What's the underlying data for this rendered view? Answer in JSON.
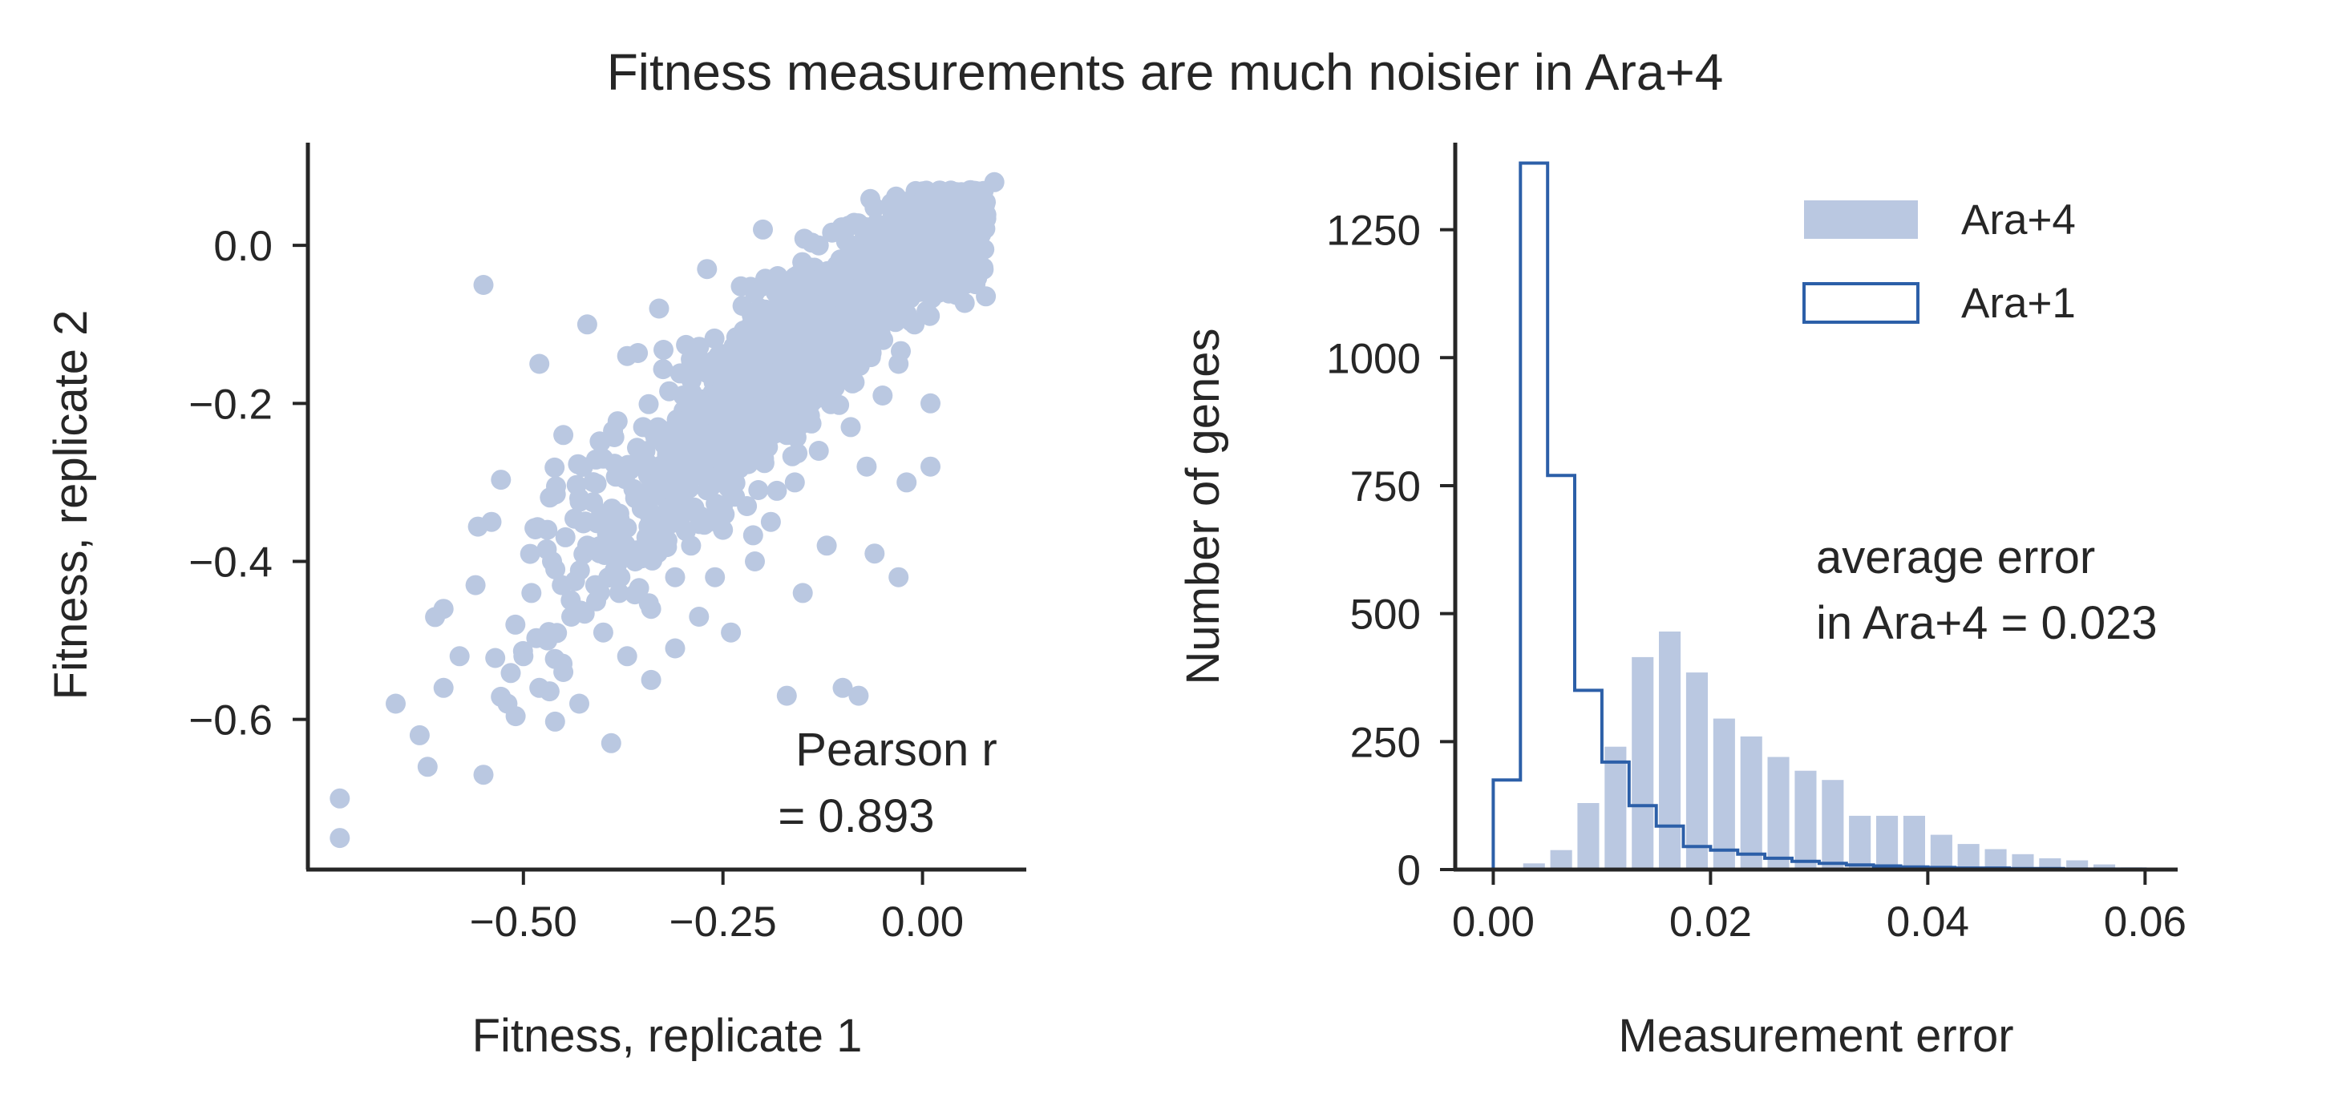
{
  "suptitle": "Fitness measurements are much noisier in Ara+4",
  "colors": {
    "ara4": "#bac8e1",
    "ara1": "#2c5fa8",
    "axis": "#262626"
  },
  "chart_data": [
    {
      "type": "scatter",
      "title": "",
      "xlabel": "Fitness, replicate 1",
      "ylabel": "Fitness, replicate 2",
      "xlim": [
        -0.77,
        0.13
      ],
      "ylim": [
        -0.79,
        0.13
      ],
      "xticks": [
        -0.5,
        -0.25,
        0.0
      ],
      "xtick_labels": [
        "−0.50",
        "−0.25",
        "0.00"
      ],
      "yticks": [
        0.0,
        -0.2,
        -0.4,
        -0.6
      ],
      "ytick_labels": [
        "0.0",
        "−0.2",
        "−0.4",
        "−0.6"
      ],
      "annotation_line1": "Pearson r",
      "annotation_line2": "= 0.893",
      "points": [
        [
          -0.73,
          -0.75
        ],
        [
          -0.73,
          -0.7
        ],
        [
          -0.66,
          -0.58
        ],
        [
          -0.63,
          -0.62
        ],
        [
          -0.62,
          -0.66
        ],
        [
          -0.6,
          -0.56
        ],
        [
          -0.6,
          -0.46
        ],
        [
          -0.58,
          -0.52
        ],
        [
          -0.56,
          -0.43
        ],
        [
          -0.55,
          -0.67
        ],
        [
          -0.55,
          -0.05
        ],
        [
          -0.54,
          -0.35
        ],
        [
          -0.52,
          -0.58
        ],
        [
          -0.51,
          -0.48
        ],
        [
          -0.5,
          -0.52
        ],
        [
          -0.49,
          -0.44
        ],
        [
          -0.48,
          -0.56
        ],
        [
          -0.48,
          -0.15
        ],
        [
          -0.47,
          -0.36
        ],
        [
          -0.47,
          -0.5
        ],
        [
          -0.46,
          -0.41
        ],
        [
          -0.45,
          -0.54
        ],
        [
          -0.45,
          -0.24
        ],
        [
          -0.44,
          -0.47
        ],
        [
          -0.43,
          -0.32
        ],
        [
          -0.43,
          -0.58
        ],
        [
          -0.42,
          -0.38
        ],
        [
          -0.42,
          -0.1
        ],
        [
          -0.41,
          -0.43
        ],
        [
          -0.4,
          -0.49
        ],
        [
          -0.4,
          -0.27
        ],
        [
          -0.39,
          -0.35
        ],
        [
          -0.39,
          -0.63
        ],
        [
          -0.38,
          -0.44
        ],
        [
          -0.37,
          -0.52
        ],
        [
          -0.37,
          -0.14
        ],
        [
          -0.36,
          -0.32
        ],
        [
          -0.36,
          -0.4
        ],
        [
          -0.35,
          -0.23
        ],
        [
          -0.34,
          -0.46
        ],
        [
          -0.34,
          -0.55
        ],
        [
          -0.33,
          -0.36
        ],
        [
          -0.33,
          -0.08
        ],
        [
          -0.32,
          -0.29
        ],
        [
          -0.31,
          -0.42
        ],
        [
          -0.31,
          -0.51
        ],
        [
          -0.3,
          -0.19
        ],
        [
          -0.3,
          -0.34
        ],
        [
          -0.29,
          -0.38
        ],
        [
          -0.28,
          -0.47
        ],
        [
          -0.28,
          -0.25
        ],
        [
          -0.27,
          -0.03
        ],
        [
          -0.27,
          -0.31
        ],
        [
          -0.26,
          -0.42
        ],
        [
          -0.25,
          -0.17
        ],
        [
          -0.25,
          -0.36
        ],
        [
          -0.24,
          -0.28
        ],
        [
          -0.24,
          -0.49
        ],
        [
          -0.23,
          -0.12
        ],
        [
          -0.22,
          -0.33
        ],
        [
          -0.22,
          -0.22
        ],
        [
          -0.21,
          -0.4
        ],
        [
          -0.21,
          -0.06
        ],
        [
          -0.2,
          -0.27
        ],
        [
          -0.2,
          0.02
        ],
        [
          -0.19,
          -0.18
        ],
        [
          -0.19,
          -0.35
        ],
        [
          -0.18,
          -0.1
        ],
        [
          -0.17,
          -0.24
        ],
        [
          -0.17,
          -0.57
        ],
        [
          -0.16,
          -0.04
        ],
        [
          -0.16,
          -0.3
        ],
        [
          -0.15,
          -0.15
        ],
        [
          -0.15,
          -0.44
        ],
        [
          -0.14,
          -0.08
        ],
        [
          -0.14,
          -0.2
        ],
        [
          -0.13,
          0.0
        ],
        [
          -0.13,
          -0.26
        ],
        [
          -0.12,
          -0.12
        ],
        [
          -0.12,
          -0.38
        ],
        [
          -0.11,
          -0.05
        ],
        [
          -0.11,
          -0.18
        ],
        [
          -0.1,
          0.02
        ],
        [
          -0.1,
          -0.56
        ],
        [
          -0.09,
          -0.09
        ],
        [
          -0.09,
          -0.23
        ],
        [
          -0.08,
          -0.02
        ],
        [
          -0.08,
          -0.14
        ],
        [
          -0.08,
          -0.57
        ],
        [
          -0.07,
          -0.06
        ],
        [
          -0.07,
          -0.28
        ],
        [
          -0.06,
          0.01
        ],
        [
          -0.06,
          -0.11
        ],
        [
          -0.05,
          -0.03
        ],
        [
          -0.05,
          -0.19
        ],
        [
          -0.04,
          0.03
        ],
        [
          -0.04,
          -0.08
        ],
        [
          -0.03,
          -0.01
        ],
        [
          -0.03,
          -0.15
        ],
        [
          -0.02,
          0.02
        ],
        [
          -0.02,
          -0.05
        ],
        [
          -0.01,
          0.04
        ],
        [
          -0.01,
          -0.1
        ],
        [
          0.0,
          0.01
        ],
        [
          0.0,
          -0.03
        ],
        [
          0.01,
          0.05
        ],
        [
          0.01,
          -0.28
        ],
        [
          0.02,
          0.02
        ],
        [
          0.02,
          -0.06
        ],
        [
          0.03,
          0.04
        ],
        [
          0.03,
          0.0
        ],
        [
          0.04,
          0.06
        ],
        [
          0.05,
          0.03
        ],
        [
          0.06,
          0.07
        ],
        [
          0.07,
          0.05
        ],
        [
          0.09,
          0.08
        ],
        [
          -0.02,
          -0.3
        ],
        [
          0.01,
          -0.2
        ],
        [
          -0.06,
          -0.39
        ],
        [
          -0.03,
          -0.42
        ]
      ],
      "cloud": {
        "n": 1600,
        "slope": 0.9,
        "center_x": -0.12,
        "spread_x": 0.15,
        "noise_y": 0.07
      }
    },
    {
      "type": "bar",
      "title": "",
      "xlabel": "Measurement error",
      "ylabel": "Number of genes",
      "xlim": [
        -0.0035,
        0.063
      ],
      "ylim": [
        0,
        1420
      ],
      "xticks": [
        0.0,
        0.02,
        0.04,
        0.06
      ],
      "xtick_labels": [
        "0.00",
        "0.02",
        "0.04",
        "0.06"
      ],
      "yticks": [
        0,
        250,
        500,
        750,
        1000,
        1250
      ],
      "ytick_labels": [
        "0",
        "250",
        "500",
        "750",
        "1000",
        "1250"
      ],
      "annotation_line1": "average error",
      "annotation_line2": "in Ara+4 = 0.023",
      "legend_position": "top-right",
      "series": [
        {
          "name": "Ara+4",
          "style": "filled",
          "bin_width": 0.0025,
          "bin_starts": [
            0.0,
            0.0025,
            0.005,
            0.0075,
            0.01,
            0.0125,
            0.015,
            0.0175,
            0.02,
            0.0225,
            0.025,
            0.0275,
            0.03,
            0.0325,
            0.035,
            0.0375,
            0.04,
            0.0425,
            0.045,
            0.0475,
            0.05,
            0.0525,
            0.055,
            0.0575
          ],
          "values": [
            2,
            12,
            38,
            130,
            240,
            415,
            465,
            385,
            295,
            260,
            220,
            193,
            175,
            105,
            105,
            105,
            68,
            50,
            40,
            30,
            22,
            18,
            10,
            4
          ]
        },
        {
          "name": "Ara+1",
          "style": "step",
          "bin_width": 0.0025,
          "bin_starts": [
            0.0,
            0.0025,
            0.005,
            0.0075,
            0.01,
            0.0125,
            0.015,
            0.0175,
            0.02,
            0.0225,
            0.025,
            0.0275,
            0.03,
            0.0325,
            0.035,
            0.0375,
            0.04,
            0.0425,
            0.045,
            0.0475,
            0.05,
            0.0525,
            0.055,
            0.0575
          ],
          "values": [
            175,
            1380,
            770,
            350,
            210,
            125,
            85,
            45,
            38,
            30,
            22,
            16,
            12,
            9,
            7,
            5,
            4,
            3,
            3,
            2,
            2,
            1,
            1,
            1
          ]
        }
      ]
    }
  ]
}
